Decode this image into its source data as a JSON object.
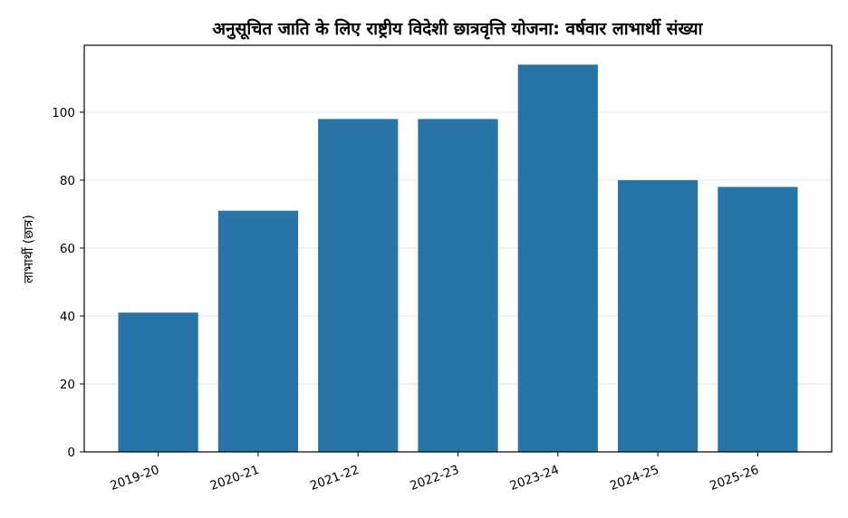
{
  "chart_data": {
    "type": "bar",
    "title": "अनुसूचित जाति के लिए राष्ट्रीय विदेशी छात्रवृत्ति योजना: वर्षवार लाभार्थी संख्या",
    "ylabel": "लाभार्थी (छात्र)",
    "categories": [
      "2019-20",
      "2020-21",
      "2021-22",
      "2022-23",
      "2023-24",
      "2024-25",
      "2025-26"
    ],
    "values": [
      41,
      71,
      98,
      98,
      114,
      80,
      78
    ],
    "ylim": [
      0,
      119.7
    ],
    "yticks": [
      0,
      20,
      40,
      60,
      80,
      100
    ],
    "grid": "horizontal",
    "legend": "none",
    "bar_color": "#2874A6"
  }
}
